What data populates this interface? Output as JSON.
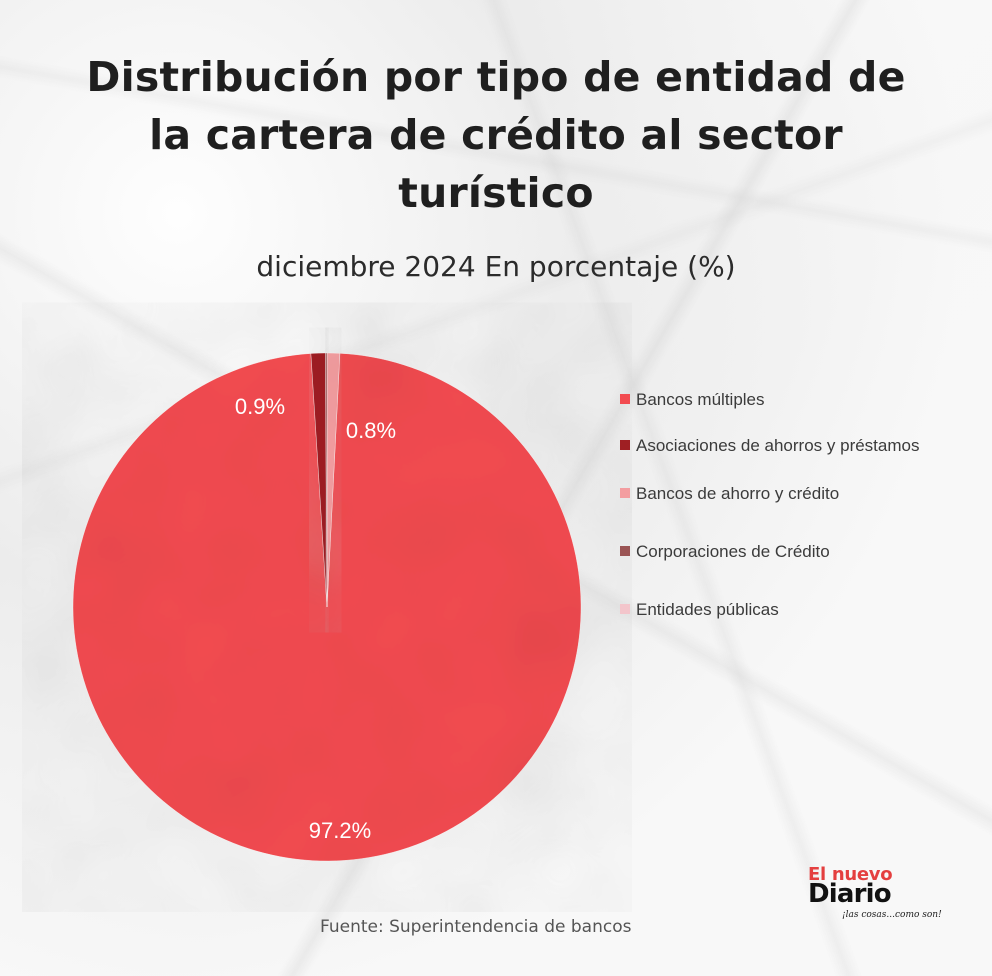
{
  "title": "Distribución por tipo de entidad de la cartera de crédito al sector turístico",
  "subtitle": "diciembre 2024 En porcentaje (%)",
  "source": "Fuente: Superintendencia de bancos",
  "logo": {
    "top": "El nuevo",
    "main": "Diario",
    "tagline": "¡las cosas...como son!"
  },
  "chart_data": {
    "type": "pie",
    "title": "Distribución por tipo de entidad de la cartera de crédito al sector turístico",
    "subtitle": "diciembre 2024 En porcentaje (%)",
    "legend_position": "right",
    "categories": [
      "Bancos múltiples",
      "Asociaciones de ahorros y préstamos",
      "Bancos de ahorro y crédito",
      "Corporaciones de Crédito",
      "Entidades públicas"
    ],
    "values": [
      97.2,
      0.9,
      0.8,
      0.1,
      0.0
    ],
    "data_labels": [
      "97.2%",
      "0.9%",
      "0.8%",
      "",
      ""
    ],
    "colors": [
      "#f24b50",
      "#9f1f23",
      "#f39da0",
      "#9a5454",
      "#f3c5cb"
    ]
  }
}
